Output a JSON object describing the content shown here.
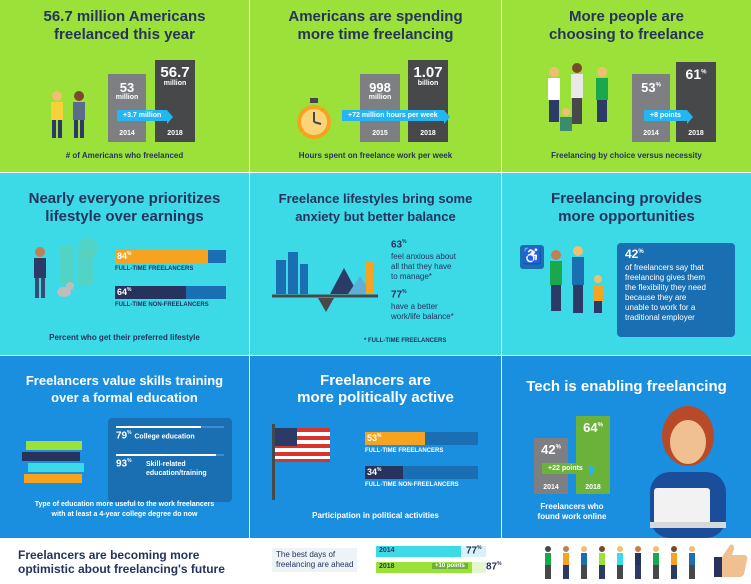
{
  "p1": {
    "title1": "56.7 million Americans",
    "title2": "freelanced this year",
    "v2014": "53",
    "u2014": "million",
    "v2018": "56.7",
    "u2018": "million",
    "delta": "+3.7 million",
    "y1": "2014",
    "y2": "2018",
    "caption": "# of Americans who freelanced"
  },
  "p2": {
    "title1": "Americans are spending",
    "title2": "more time freelancing",
    "v2015": "998",
    "u2015": "million",
    "v2018": "1.07",
    "u2018": "billion",
    "delta": "+72 million hours per week",
    "y1": "2015",
    "y2": "2018",
    "caption": "Hours spent on freelance work per week"
  },
  "p3": {
    "title1": "More people are",
    "title2": "choosing to freelance",
    "v2014": "53",
    "v2018": "61",
    "pct": "%",
    "delta": "+8 points",
    "y1": "2014",
    "y2": "2018",
    "caption": "Freelancing by choice versus necessity"
  },
  "p4": {
    "title1": "Nearly everyone prioritizes",
    "title2": "lifestyle over earnings",
    "v1": "84",
    "l1": "FULL-TIME FREELANCERS",
    "v2": "64",
    "l2": "FULL-TIME NON-FREELANCERS",
    "pct": "%",
    "caption": "Percent who get their preferred lifestyle"
  },
  "p5": {
    "title1": "Freelance lifestyles bring some",
    "title2": "anxiety but better balance",
    "v1": "63",
    "t1a": "feel anxious about",
    "t1b": "all that they have",
    "t1c": "to manage*",
    "v2": "77",
    "t2a": "have a better",
    "t2b": "work/life balance*",
    "pct": "%",
    "note": "* FULL-TIME FREELANCERS"
  },
  "p6": {
    "title1": "Freelancing provides",
    "title2": "more opportunities",
    "v": "42",
    "pct": "%",
    "l1": "of freelancers say that",
    "l2": "freelancing gives them",
    "l3": "the flexibility they need",
    "l4": "because they are",
    "l5": "unable to work for a",
    "l6": "traditional employer"
  },
  "p7": {
    "title1": "Freelancers value skills training",
    "title2": "over a formal education",
    "v1": "79",
    "l1": "College education",
    "v2": "93",
    "l2a": "Skill-related",
    "l2b": "education/training",
    "pct": "%",
    "cap1": "Type of education more useful to the work freelancers",
    "cap2": "with at least a 4-year college degree do now"
  },
  "p8": {
    "title1": "Freelancers are",
    "title2": "more politically active",
    "v1": "53",
    "l1": "FULL-TIME FREELANCERS",
    "v2": "34",
    "l2": "FULL-TIME NON-FREELANCERS",
    "pct": "%",
    "caption": "Participation in political activities"
  },
  "p9": {
    "title": "Tech is enabling freelancing",
    "v2014": "42",
    "v2018": "64",
    "pct": "%",
    "delta": "+22 points",
    "y1": "2014",
    "y2": "2018",
    "cap1": "Freelancers who",
    "cap2": "found work online"
  },
  "footer": {
    "title1": "Freelancers are becoming more",
    "title2": "optimistic about freelancing's future",
    "label1": "The best days of",
    "label2": "freelancing are ahead",
    "y1": "2014",
    "v1": "77",
    "y2": "2018",
    "v2": "87",
    "pct": "%",
    "delta": "+10 points"
  },
  "chart_data": [
    {
      "type": "bar",
      "title": "56.7 million Americans freelanced this year",
      "categories": [
        "2014",
        "2018"
      ],
      "values": [
        53,
        56.7
      ]
    },
    {
      "type": "bar",
      "title": "Americans are spending more time freelancing",
      "categories": [
        "2015",
        "2018"
      ],
      "values": [
        998,
        1070
      ]
    },
    {
      "type": "bar",
      "title": "More people are choosing to freelance",
      "categories": [
        "2014",
        "2018"
      ],
      "values": [
        53,
        61
      ]
    },
    {
      "type": "bar",
      "title": "Nearly everyone prioritizes lifestyle over earnings",
      "categories": [
        "FULL-TIME FREELANCERS",
        "FULL-TIME NON-FREELANCERS"
      ],
      "values": [
        84,
        64
      ]
    },
    {
      "type": "bar",
      "title": "Freelancers value skills training over a formal education",
      "categories": [
        "College education",
        "Skill-related education/training"
      ],
      "values": [
        79,
        93
      ]
    },
    {
      "type": "bar",
      "title": "Freelancers are more politically active",
      "categories": [
        "FULL-TIME FREELANCERS",
        "FULL-TIME NON-FREELANCERS"
      ],
      "values": [
        53,
        34
      ]
    },
    {
      "type": "bar",
      "title": "Tech is enabling freelancing",
      "categories": [
        "2014",
        "2018"
      ],
      "values": [
        42,
        64
      ]
    },
    {
      "type": "bar",
      "title": "Freelancers are becoming more optimistic about freelancing's future",
      "categories": [
        "2014",
        "2018"
      ],
      "values": [
        77,
        87
      ]
    }
  ]
}
